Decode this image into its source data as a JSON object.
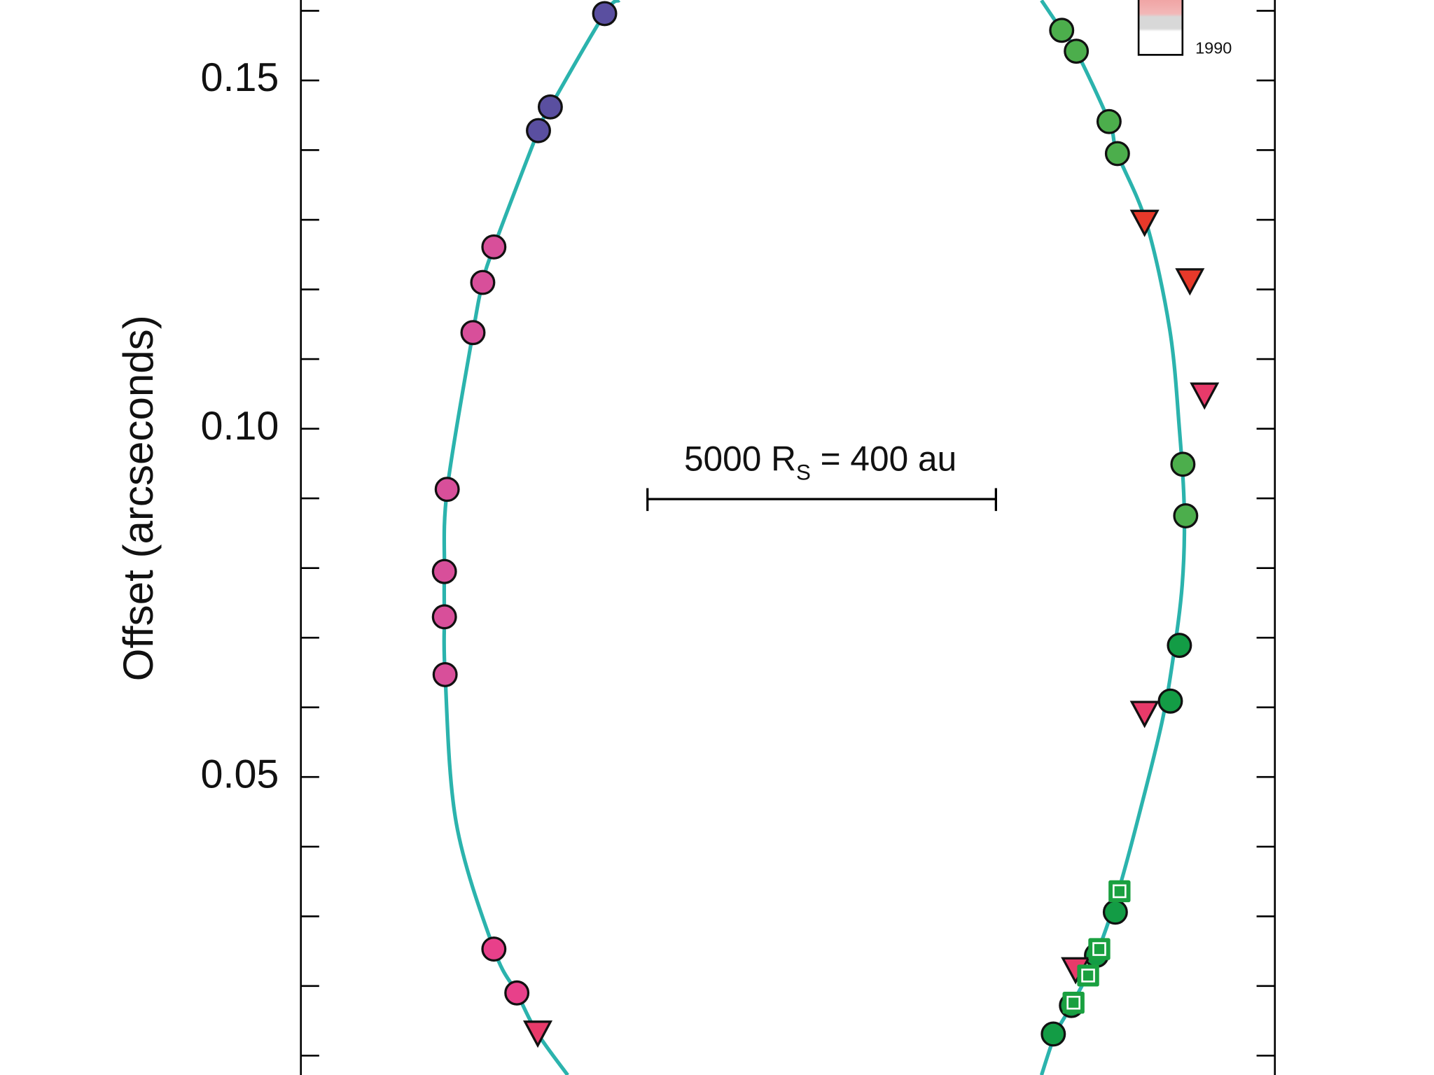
{
  "chart_data": {
    "type": "scatter",
    "y_label": "Offset (arcseconds)",
    "ylim": [
      0.00722,
      0.16155
    ],
    "xlim": [
      0,
      0.1398
    ],
    "yticks": [
      {
        "value": 0.05,
        "label": "0.05"
      },
      {
        "value": 0.1,
        "label": "0.10"
      },
      {
        "value": 0.15,
        "label": "0.15"
      }
    ],
    "yminorticks": [
      0.01,
      0.02,
      0.03,
      0.04,
      0.06,
      0.07,
      0.08,
      0.09,
      0.11,
      0.12,
      0.13,
      0.14,
      0.16
    ],
    "scale_bar": {
      "text": "5000 R",
      "subscript": "S",
      "suffix": " = 400 au"
    },
    "colorbar_label": "1990",
    "orbit": {
      "color": "#2bb3ad",
      "x": [
        0.0457,
        0.0436,
        0.0358,
        0.0341,
        0.0277,
        0.0261,
        0.0247,
        0.021,
        0.0206,
        0.0206,
        0.0207,
        0.0223,
        0.0277,
        0.031,
        0.0339,
        0.0383,
        null,
        0.1063,
        0.1092,
        0.1113,
        0.116,
        0.1172,
        0.1214,
        0.1247,
        0.1261,
        0.1268,
        0.1265,
        0.1252,
        0.1236,
        0.1207,
        0.1173,
        0.1139,
        0.1106,
        0.1083,
        0.1063
      ],
      "y": [
        0.1615,
        0.1596,
        0.1462,
        0.1428,
        0.1261,
        0.121,
        0.1138,
        0.0913,
        0.0795,
        0.073,
        0.0647,
        0.0434,
        0.0253,
        0.019,
        0.0133,
        0.0072,
        null,
        0.1615,
        0.1572,
        0.1542,
        0.1441,
        0.1395,
        0.1294,
        0.1143,
        0.0999,
        0.0881,
        0.0776,
        0.0671,
        0.0579,
        0.0461,
        0.0335,
        0.0238,
        0.0172,
        0.0131,
        0.0072
      ]
    },
    "series": [
      {
        "color": "#5a4fa0",
        "marker": "circle",
        "x": [
          0.0436,
          0.0358,
          0.0341
        ],
        "y": [
          0.1596,
          0.1462,
          0.1428
        ]
      },
      {
        "color": "#d84f9a",
        "marker": "circle",
        "x": [
          0.0277,
          0.0261,
          0.0247,
          0.021,
          0.0206,
          0.0206,
          0.0207
        ],
        "y": [
          0.1261,
          0.121,
          0.1138,
          0.0913,
          0.0795,
          0.073,
          0.0647
        ]
      },
      {
        "color": "#e8408a",
        "marker": "circle",
        "x": [
          0.0277,
          0.031
        ],
        "y": [
          0.0253,
          0.019
        ]
      },
      {
        "color": "#4cae4c",
        "marker": "circle",
        "x": [
          0.1092,
          0.1113,
          0.116,
          0.1172,
          0.1266,
          0.127
        ],
        "y": [
          0.1572,
          0.1542,
          0.1441,
          0.1395,
          0.0949,
          0.0875
        ]
      },
      {
        "color": "#139c45",
        "marker": "circle",
        "x": [
          0.1261,
          0.1248,
          0.1169,
          0.1142,
          0.1106,
          0.108
        ],
        "y": [
          0.0689,
          0.0609,
          0.0306,
          0.0244,
          0.0172,
          0.0131
        ]
      },
      {
        "color": "#e8392a",
        "marker": "triangle",
        "x": [
          0.1211,
          0.1276
        ],
        "y": [
          0.1297,
          0.1213
        ]
      },
      {
        "color": "#e83a6a",
        "marker": "triangle",
        "x": [
          0.1297,
          0.1211,
          0.1112,
          0.034
        ],
        "y": [
          0.1049,
          0.0592,
          0.0224,
          0.0133
        ]
      },
      {
        "color": "#1aa040",
        "marker": "square",
        "x": [
          0.1175,
          0.1146,
          0.113,
          0.1109
        ],
        "y": [
          0.0336,
          0.0253,
          0.0215,
          0.0176
        ]
      }
    ]
  }
}
